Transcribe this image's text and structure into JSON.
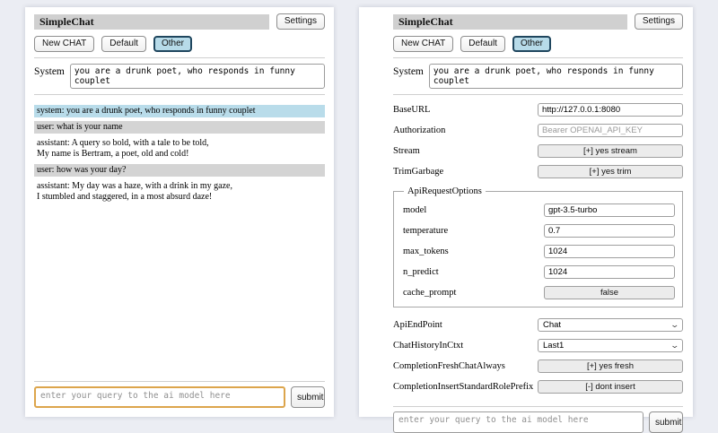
{
  "icons": {
    "chevron_down": "⌄"
  },
  "colors": {
    "page_bg": "#ebedf3",
    "title_bar_bg": "#d0d0d0",
    "system_msg_bg": "#b9dcea",
    "user_msg_bg": "#d4d4d4",
    "selected_tab_bg": "#b7dbe9",
    "focused_input_border": "#dca54c"
  },
  "left_panel": {
    "title": "SimpleChat",
    "settings_label": "Settings",
    "toolbar": [
      {
        "label": "New CHAT",
        "selected": false
      },
      {
        "label": "Default",
        "selected": false
      },
      {
        "label": "Other",
        "selected": true
      }
    ],
    "system_label": "System",
    "system_prompt": "you are a drunk poet, who responds in funny couplet",
    "messages": [
      {
        "role": "system",
        "lines": [
          "system: you are a drunk poet, who responds in funny couplet"
        ]
      },
      {
        "role": "user",
        "lines": [
          "user: what is your name"
        ]
      },
      {
        "role": "assistant",
        "lines": [
          "assistant: A query so bold, with a tale to be told,",
          "My name is Bertram, a poet, old and cold!"
        ]
      },
      {
        "role": "user",
        "lines": [
          "user: how was your day?"
        ]
      },
      {
        "role": "assistant",
        "lines": [
          "assistant: My day was a haze, with a drink in my gaze,",
          "I stumbled and staggered, in a most absurd daze!"
        ]
      }
    ],
    "query_placeholder": "enter your query to the ai model here",
    "submit_label": "submit"
  },
  "right_panel": {
    "title": "SimpleChat",
    "settings_label": "Settings",
    "toolbar": [
      {
        "label": "New CHAT",
        "selected": false
      },
      {
        "label": "Default",
        "selected": false
      },
      {
        "label": "Other",
        "selected": true
      }
    ],
    "system_label": "System",
    "system_prompt": "you are a drunk poet, who responds in funny couplet",
    "rows_top": [
      {
        "label": "BaseURL",
        "type": "input",
        "value": "http://127.0.0.1:8080"
      },
      {
        "label": "Authorization",
        "type": "input",
        "value": "",
        "placeholder": "Bearer OPENAI_API_KEY"
      },
      {
        "label": "Stream",
        "type": "button",
        "value": "[+] yes stream"
      },
      {
        "label": "TrimGarbage",
        "type": "button",
        "value": "[+] yes trim"
      }
    ],
    "fieldset": {
      "legend": "ApiRequestOptions",
      "rows": [
        {
          "label": "model",
          "type": "input",
          "value": "gpt-3.5-turbo"
        },
        {
          "label": "temperature",
          "type": "input",
          "value": "0.7"
        },
        {
          "label": "max_tokens",
          "type": "input",
          "value": "1024"
        },
        {
          "label": "n_predict",
          "type": "input",
          "value": "1024"
        },
        {
          "label": "cache_prompt",
          "type": "button",
          "value": "false"
        }
      ]
    },
    "rows_bottom": [
      {
        "label": "ApiEndPoint",
        "type": "select",
        "value": "Chat"
      },
      {
        "label": "ChatHistoryInCtxt",
        "type": "select",
        "value": "Last1"
      },
      {
        "label": "CompletionFreshChatAlways",
        "type": "button",
        "value": "[+] yes fresh"
      },
      {
        "label": "CompletionInsertStandardRolePrefix",
        "type": "button",
        "value": "[-] dont insert"
      }
    ],
    "query_placeholder": "enter your query to the ai model here",
    "submit_label": "submit"
  }
}
